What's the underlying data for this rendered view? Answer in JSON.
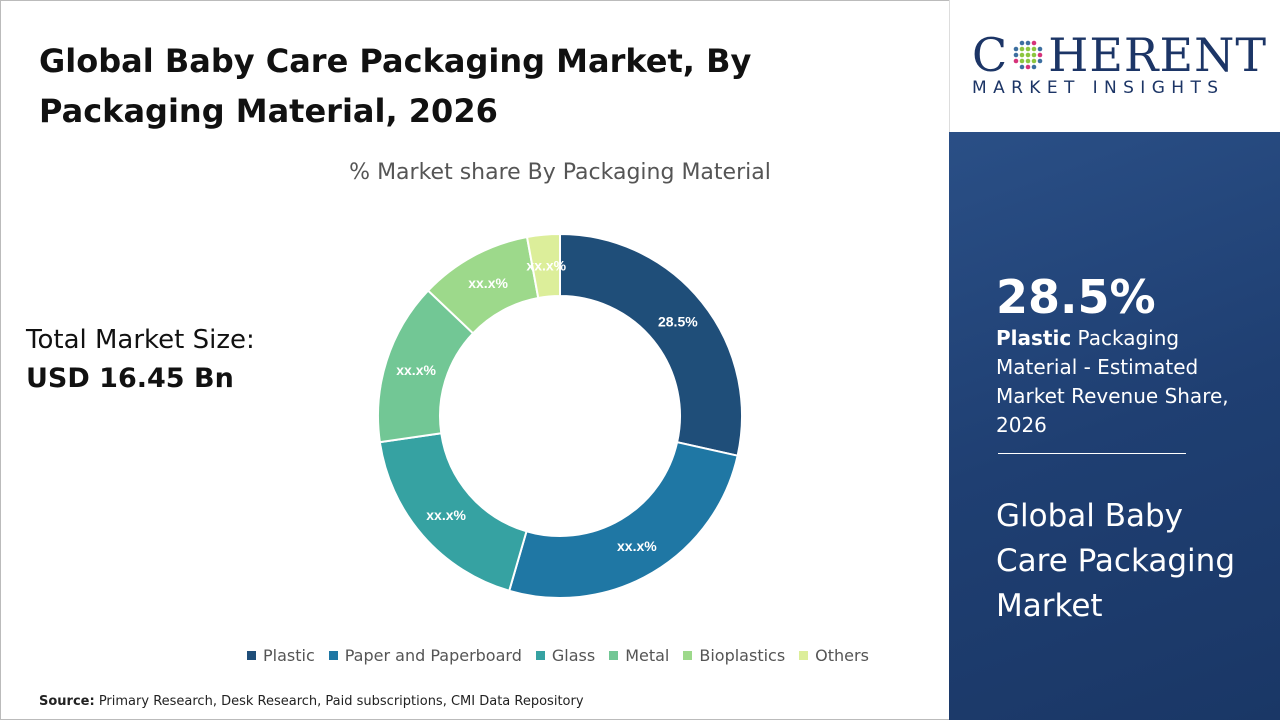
{
  "title": "Global Baby Care Packaging Market, By Packaging Material, 2026",
  "total_market": {
    "label": "Total Market Size:",
    "value": "USD 16.45 Bn"
  },
  "source": {
    "label": "Source:",
    "text": " Primary Research, Desk Research, Paid subscriptions, CMI Data Repository"
  },
  "logo": {
    "top": "COHERENT",
    "bottom": "MARKET INSIGHTS"
  },
  "panel": {
    "value": "28.5%",
    "desc_bold": "Plastic",
    "desc_rest": " Packaging Material - Estimated Market Revenue Share, 2026",
    "name": "Global Baby Care Packaging Market"
  },
  "chart_data": {
    "type": "pie",
    "donut": true,
    "title": "% Market share By Packaging Material",
    "legend_position": "bottom",
    "categories": [
      "Plastic",
      "Paper and Paperboard",
      "Glass",
      "Metal",
      "Bioplastics",
      "Others"
    ],
    "values": [
      28.5,
      26.0,
      18.2,
      14.4,
      10.0,
      2.9
    ],
    "labels": [
      "28.5%",
      "xx.x%",
      "xx.x%",
      "xx.x%",
      "xx.x%",
      "xx.x%"
    ],
    "colors": [
      "#1f4e79",
      "#1f77a4",
      "#36a2a2",
      "#72c795",
      "#9dd98b",
      "#dcee9a"
    ]
  }
}
